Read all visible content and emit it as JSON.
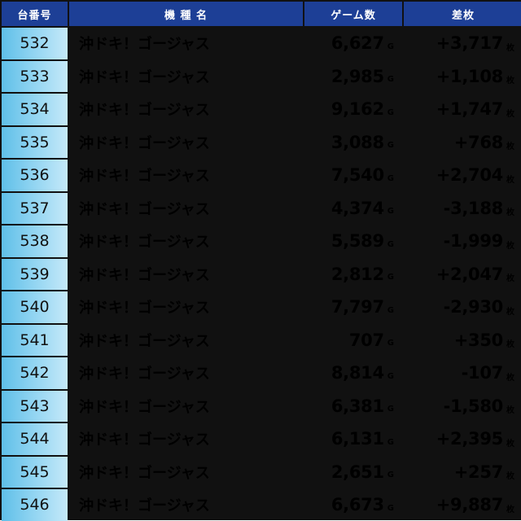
{
  "header": {
    "number": "台番号",
    "machine": "機 種 名",
    "games": "ゲーム数",
    "diff": "差枚"
  },
  "units": {
    "games": "G",
    "diff": "枚"
  },
  "rows": [
    {
      "number": "532",
      "machine": "沖ドキ！ゴージャス",
      "games": "6,627",
      "diff": "+3,717"
    },
    {
      "number": "533",
      "machine": "沖ドキ！ゴージャス",
      "games": "2,985",
      "diff": "+1,108"
    },
    {
      "number": "534",
      "machine": "沖ドキ！ゴージャス",
      "games": "9,162",
      "diff": "+1,747"
    },
    {
      "number": "535",
      "machine": "沖ドキ！ゴージャス",
      "games": "3,088",
      "diff": "+768"
    },
    {
      "number": "536",
      "machine": "沖ドキ！ゴージャス",
      "games": "7,540",
      "diff": "+2,704"
    },
    {
      "number": "537",
      "machine": "沖ドキ！ゴージャス",
      "games": "4,374",
      "diff": "-3,188"
    },
    {
      "number": "538",
      "machine": "沖ドキ！ゴージャス",
      "games": "5,589",
      "diff": "-1,999"
    },
    {
      "number": "539",
      "machine": "沖ドキ！ゴージャス",
      "games": "2,812",
      "diff": "+2,047"
    },
    {
      "number": "540",
      "machine": "沖ドキ！ゴージャス",
      "games": "7,797",
      "diff": "-2,930"
    },
    {
      "number": "541",
      "machine": "沖ドキ！ゴージャス",
      "games": "707",
      "diff": "+350"
    },
    {
      "number": "542",
      "machine": "沖ドキ！ゴージャス",
      "games": "8,814",
      "diff": "-107"
    },
    {
      "number": "543",
      "machine": "沖ドキ！ゴージャス",
      "games": "6,381",
      "diff": "-1,580"
    },
    {
      "number": "544",
      "machine": "沖ドキ！ゴージャス",
      "games": "6,131",
      "diff": "+2,395"
    },
    {
      "number": "545",
      "machine": "沖ドキ！ゴージャス",
      "games": "2,651",
      "diff": "+257"
    },
    {
      "number": "546",
      "machine": "沖ドキ！ゴージャス",
      "games": "6,673",
      "diff": "+9,887"
    }
  ],
  "colors": {
    "header_bg": "#1d3f96",
    "number_cell": "#8ed3f1",
    "alt_row": "#eaf0fa",
    "border": "#111111"
  }
}
